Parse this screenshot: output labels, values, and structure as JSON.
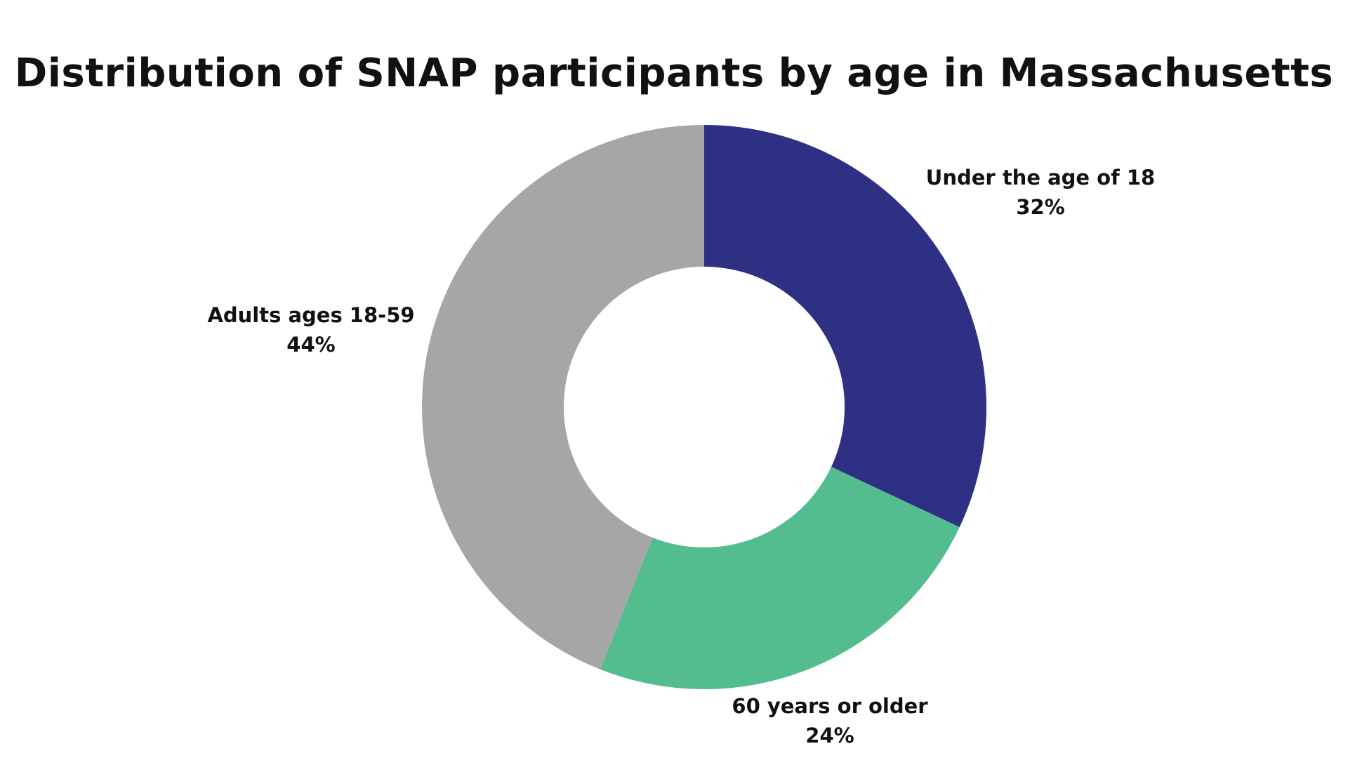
{
  "chart": {
    "title": "Distribution of SNAP participants by age in Massachusetts"
  },
  "chart_data": {
    "type": "pie",
    "variant": "donut",
    "title": "Distribution of SNAP participants by age in Massachusetts",
    "start_angle_deg": 0,
    "direction": "clockwise",
    "slices": [
      {
        "label": "Under the age of 18",
        "value": 32,
        "value_label": "32%",
        "color": "#2e3084"
      },
      {
        "label": "60 years or older",
        "value": 24,
        "value_label": "24%",
        "color": "#54bd8f"
      },
      {
        "label": "Adults ages 18-59",
        "value": 44,
        "value_label": "44%",
        "color": "#a6a6a6"
      }
    ],
    "legend": "none",
    "data_labels": "outside"
  }
}
